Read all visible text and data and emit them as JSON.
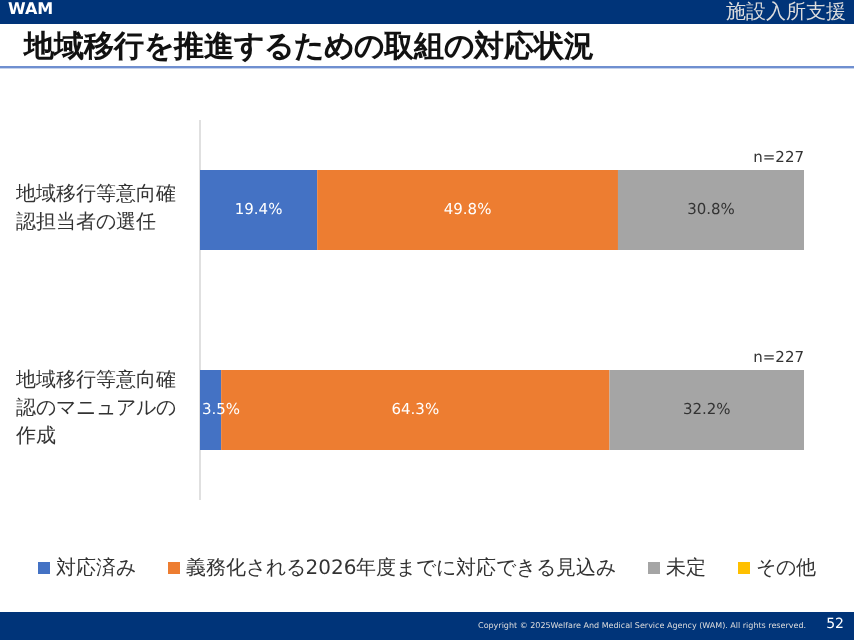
{
  "chart_data": {
    "type": "bar",
    "orientation": "horizontal",
    "stacked": true,
    "title": "地域移行を推進するための取組の対応状況",
    "categories": [
      "地域移行等意向確認担当者の選任",
      "地域移行等意向確認のマニュアルの作成"
    ],
    "xlim": [
      0,
      100
    ],
    "legend": "bottom",
    "series": [
      {
        "name": "対応済み",
        "color": "#4472c4",
        "values": [
          19.4,
          3.5
        ],
        "value_labels": [
          "19.4%",
          "3.5%"
        ]
      },
      {
        "name": "義務化される2026年度までに対応できる見込み",
        "color": "#ed7d31",
        "values": [
          49.8,
          64.3
        ],
        "value_labels": [
          "49.8%",
          "64.3%"
        ]
      },
      {
        "name": "未定",
        "color": "#a5a5a5",
        "values": [
          30.8,
          32.2
        ],
        "value_labels": [
          "30.8%",
          "32.2%"
        ]
      },
      {
        "name": "その他",
        "color": "#ffc000",
        "values": [
          0,
          0
        ],
        "value_labels": [
          null,
          null
        ]
      }
    ],
    "annotations": [
      "WAM",
      "施設入所支援",
      {
        "text": "n=227",
        "x": 100,
        "y": "地域移行等意向確認担当者の選任"
      },
      {
        "text": "n=227",
        "x": 100,
        "y": "地域移行等意向確認のマニュアルの作成"
      },
      "Copyright © 2025Welfare And Medical Service Agency (WAM). All rights reserved.",
      "52"
    ]
  }
}
